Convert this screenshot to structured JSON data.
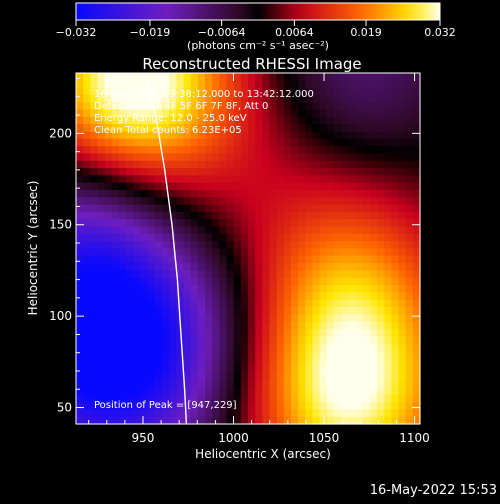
{
  "chart_data": {
    "type": "heatmap",
    "title": "Reconstructed RHESSI Image",
    "xlabel": "Heliocentric X (arcsec)",
    "ylabel": "Heliocentric Y (arcsec)",
    "xlim": [
      913,
      1103
    ],
    "ylim": [
      41,
      233
    ],
    "x_ticks": [
      950,
      1000,
      1050,
      1100
    ],
    "y_ticks": [
      50,
      100,
      150,
      200
    ],
    "colorbar": {
      "range": [
        -0.032,
        0.032
      ],
      "ticks": [
        "−0.032",
        "−0.019",
        "−0.0064",
        "0.0064",
        "0.019",
        "0.032"
      ],
      "label": "(photons cm⁻² s⁻¹ asec⁻²)"
    },
    "sources": [
      {
        "x": 945,
        "y": 229,
        "sigma": 38,
        "amp": 0.034
      },
      {
        "x": 1062,
        "y": 55,
        "sigma": 42,
        "amp": 0.03
      },
      {
        "x": 1068,
        "y": 118,
        "sigma": 36,
        "amp": 0.014
      },
      {
        "x": 1070,
        "y": 235,
        "sigma": 34,
        "amp": -0.01
      },
      {
        "x": 935,
        "y": 88,
        "sigma": 48,
        "amp": -0.042
      },
      {
        "x": 918,
        "y": 150,
        "sigma": 30,
        "amp": -0.008
      },
      {
        "x": 1000,
        "y": 150,
        "sigma": 55,
        "amp": 0.008
      }
    ],
    "limb_curve": [
      [
        951,
        233
      ],
      [
        957,
        210
      ],
      [
        962,
        180
      ],
      [
        966,
        150
      ],
      [
        969,
        120
      ],
      [
        971,
        90
      ],
      [
        973,
        60
      ],
      [
        974,
        41
      ]
    ],
    "annotations": [
      "16-May-2022 13:38:12.000 to 13:42:12.000",
      "Detectors: 3F 4F 5F 6F 7F 8F, Att 0",
      "Energy Range: 12.0 - 25.0 keV",
      "Clean    Total counts: 6.23E+05"
    ],
    "peak_label": "Position of Peak = [947,229]",
    "footer": "16-May-2022 15:53"
  }
}
